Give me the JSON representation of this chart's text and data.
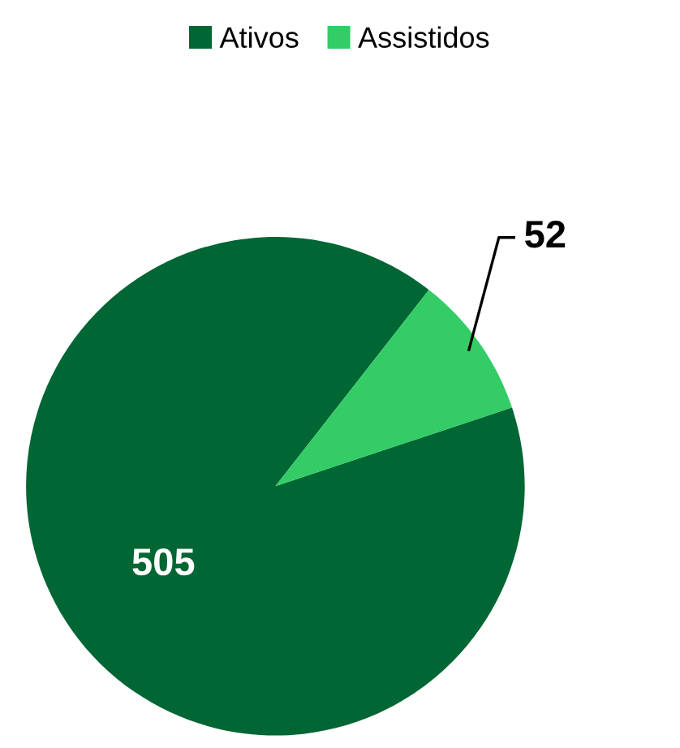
{
  "chart_data": {
    "type": "pie",
    "categories": [
      "Ativos",
      "Assistidos"
    ],
    "values": [
      505,
      52
    ],
    "colors": [
      "#006633",
      "#33cc66"
    ],
    "data_labels": true,
    "legend": "top"
  }
}
